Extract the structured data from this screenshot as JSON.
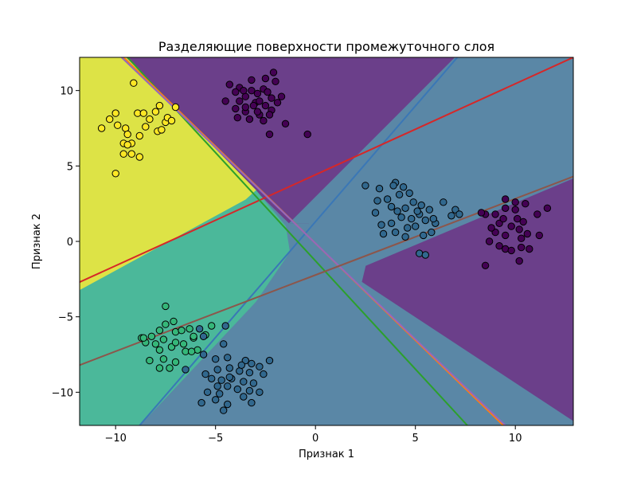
{
  "chart_data": {
    "type": "scatter",
    "title": "Разделяющие поверхности промежуточного слоя",
    "xlabel": "Признак 1",
    "ylabel": "Признак 2",
    "xlim": [
      -11.8,
      12.9
    ],
    "ylim": [
      -12.2,
      12.2
    ],
    "xticks": [
      -10,
      -5,
      0,
      5,
      10
    ],
    "yticks": [
      -10,
      -5,
      0,
      5,
      10
    ],
    "tick_labels_x": [
      "−10",
      "−5",
      "0",
      "5",
      "10"
    ],
    "tick_labels_y": [
      "−10",
      "−5",
      "0",
      "5",
      "10"
    ],
    "grid": false,
    "regions": [
      {
        "name": "class-0",
        "color": "#6b3f8a",
        "polygon": [
          [
            -9.5,
            12.2
          ],
          [
            -3.0,
            3.4
          ],
          [
            -1.3,
            1.2
          ],
          [
            -0.3,
            1.2
          ],
          [
            7.0,
            12.2
          ]
        ]
      },
      {
        "name": "class-0",
        "color": "#6b3f8a",
        "polygon": [
          [
            12.9,
            4.2
          ],
          [
            2.5,
            -1.6
          ],
          [
            2.3,
            -2.7
          ],
          [
            13.2,
            -12.2
          ],
          [
            12.9,
            -12.2
          ]
        ]
      },
      {
        "name": "class-1",
        "color": "#5a87a6",
        "polygon": [
          [
            7.0,
            12.2
          ],
          [
            12.9,
            12.2
          ],
          [
            12.9,
            4.2
          ],
          [
            2.5,
            -1.6
          ],
          [
            2.3,
            -2.7
          ],
          [
            13.2,
            -12.2
          ],
          [
            -8.8,
            -12.2
          ],
          [
            -3.0,
            -4.0
          ],
          [
            -1.3,
            -0.7
          ],
          [
            -0.3,
            1.2
          ],
          [
            -1.3,
            1.2
          ]
        ]
      },
      {
        "name": "class-2",
        "color": "#4bb89a",
        "polygon": [
          [
            -11.8,
            -3.2
          ],
          [
            -3.5,
            2.8
          ],
          [
            -3.0,
            3.4
          ],
          [
            -1.5,
            1.0
          ],
          [
            -1.3,
            -0.7
          ],
          [
            -3.0,
            -4.0
          ],
          [
            -8.8,
            -12.2
          ],
          [
            -11.8,
            -12.2
          ]
        ]
      },
      {
        "name": "class-3",
        "color": "#dde346",
        "polygon": [
          [
            -11.8,
            12.2
          ],
          [
            -9.5,
            12.2
          ],
          [
            -3.0,
            3.4
          ],
          [
            -3.5,
            2.8
          ],
          [
            -11.8,
            -3.2
          ]
        ]
      }
    ],
    "lines": [
      {
        "name": "line-blue",
        "color": "#3a77b6",
        "points": [
          [
            -8.8,
            -12.2
          ],
          [
            7.1,
            12.2
          ]
        ]
      },
      {
        "name": "line-red",
        "color": "#d62728",
        "points": [
          [
            -11.8,
            -2.7
          ],
          [
            12.9,
            12.2
          ]
        ]
      },
      {
        "name": "line-green",
        "color": "#2ca02c",
        "points": [
          [
            -9.4,
            12.2
          ],
          [
            7.6,
            -12.2
          ]
        ]
      },
      {
        "name": "line-orange",
        "color": "#ff7f0e",
        "points": [
          [
            -9.6,
            12.2
          ],
          [
            9.4,
            -12.2
          ]
        ]
      },
      {
        "name": "line-purple",
        "color": "#9467bd",
        "points": [
          [
            -9.7,
            12.2
          ],
          [
            9.5,
            -12.2
          ]
        ]
      },
      {
        "name": "line-brown",
        "color": "#8c564b",
        "points": [
          [
            -11.8,
            -8.2
          ],
          [
            12.9,
            4.3
          ]
        ]
      }
    ],
    "series": [
      {
        "cluster": "purple-top",
        "color": "#440154",
        "points": [
          [
            -4.3,
            10.4
          ],
          [
            -3.8,
            10.2
          ],
          [
            -3.5,
            9.6
          ],
          [
            -3.2,
            10.0
          ],
          [
            -2.9,
            9.8
          ],
          [
            -2.6,
            10.1
          ],
          [
            -2.2,
            9.5
          ],
          [
            -3.8,
            9.3
          ],
          [
            -3.0,
            9.2
          ],
          [
            -2.5,
            9.0
          ],
          [
            -4.0,
            8.8
          ],
          [
            -3.5,
            8.6
          ],
          [
            -2.8,
            8.4
          ],
          [
            -2.2,
            8.7
          ],
          [
            -3.3,
            8.1
          ],
          [
            -2.6,
            8.0
          ],
          [
            -1.5,
            7.8
          ],
          [
            -2.3,
            7.1
          ],
          [
            -0.4,
            7.1
          ],
          [
            -3.1,
            9.0
          ],
          [
            -2.1,
            11.2
          ],
          [
            -2.5,
            10.8
          ],
          [
            -3.2,
            10.7
          ],
          [
            -4.0,
            9.9
          ],
          [
            -1.9,
            9.2
          ],
          [
            -2.8,
            9.3
          ],
          [
            -3.5,
            8.9
          ],
          [
            -2.3,
            8.4
          ],
          [
            -1.7,
            9.6
          ],
          [
            -3.9,
            8.2
          ],
          [
            -2.9,
            8.6
          ],
          [
            -4.5,
            9.3
          ],
          [
            -2.0,
            10.6
          ],
          [
            -3.6,
            10.0
          ],
          [
            -2.4,
            9.9
          ]
        ]
      },
      {
        "cluster": "yellow",
        "color": "#fde725",
        "points": [
          [
            -9.1,
            10.5
          ],
          [
            -7.0,
            8.9
          ],
          [
            -10.3,
            8.1
          ],
          [
            -10.0,
            8.5
          ],
          [
            -9.9,
            7.7
          ],
          [
            -9.5,
            7.5
          ],
          [
            -9.4,
            7.1
          ],
          [
            -8.9,
            8.5
          ],
          [
            -8.6,
            8.5
          ],
          [
            -8.3,
            8.1
          ],
          [
            -8.0,
            8.6
          ],
          [
            -7.8,
            9.0
          ],
          [
            -7.5,
            7.9
          ],
          [
            -7.4,
            8.2
          ],
          [
            -8.5,
            7.6
          ],
          [
            -7.9,
            7.3
          ],
          [
            -7.7,
            7.4
          ],
          [
            -8.8,
            7.0
          ],
          [
            -9.6,
            6.5
          ],
          [
            -9.2,
            6.5
          ],
          [
            -9.4,
            6.4
          ],
          [
            -10.7,
            7.5
          ],
          [
            -9.6,
            5.8
          ],
          [
            -9.2,
            5.8
          ],
          [
            -8.8,
            5.6
          ],
          [
            -10.0,
            4.5
          ],
          [
            -7.2,
            8.0
          ]
        ]
      },
      {
        "cluster": "blue-right",
        "color": "#31688e",
        "points": [
          [
            2.5,
            3.7
          ],
          [
            3.2,
            3.5
          ],
          [
            4.0,
            3.9
          ],
          [
            4.4,
            3.6
          ],
          [
            4.7,
            3.2
          ],
          [
            4.2,
            3.1
          ],
          [
            3.6,
            2.8
          ],
          [
            3.1,
            2.7
          ],
          [
            3.8,
            2.3
          ],
          [
            4.1,
            2.0
          ],
          [
            4.5,
            2.2
          ],
          [
            4.9,
            2.6
          ],
          [
            5.3,
            2.4
          ],
          [
            5.7,
            2.1
          ],
          [
            6.4,
            2.6
          ],
          [
            4.3,
            1.6
          ],
          [
            4.8,
            1.5
          ],
          [
            5.0,
            1.0
          ],
          [
            4.6,
            0.9
          ],
          [
            3.8,
            1.2
          ],
          [
            3.3,
            1.1
          ],
          [
            5.2,
            1.8
          ],
          [
            5.5,
            1.4
          ],
          [
            6.0,
            1.2
          ],
          [
            6.8,
            1.7
          ],
          [
            7.0,
            2.1
          ],
          [
            7.2,
            1.8
          ],
          [
            5.8,
            0.6
          ],
          [
            5.4,
            0.4
          ],
          [
            4.5,
            0.3
          ],
          [
            3.4,
            0.5
          ],
          [
            5.2,
            -0.8
          ],
          [
            5.5,
            -0.9
          ],
          [
            4.0,
            0.6
          ],
          [
            5.9,
            1.5
          ],
          [
            3.0,
            1.9
          ],
          [
            3.9,
            3.7
          ],
          [
            5.1,
            2.0
          ]
        ]
      },
      {
        "cluster": "purple-right",
        "color": "#440154",
        "points": [
          [
            9.5,
            2.8
          ],
          [
            9.5,
            2.2
          ],
          [
            10.0,
            2.1
          ],
          [
            10.5,
            2.5
          ],
          [
            11.1,
            1.8
          ],
          [
            11.6,
            2.2
          ],
          [
            9.0,
            1.8
          ],
          [
            8.5,
            1.8
          ],
          [
            8.3,
            1.9
          ],
          [
            9.2,
            1.2
          ],
          [
            10.1,
            1.5
          ],
          [
            9.8,
            1.0
          ],
          [
            10.2,
            0.8
          ],
          [
            9.0,
            0.6
          ],
          [
            9.5,
            0.4
          ],
          [
            10.3,
            0.2
          ],
          [
            10.6,
            0.5
          ],
          [
            11.2,
            0.4
          ],
          [
            8.7,
            0.0
          ],
          [
            9.2,
            -0.3
          ],
          [
            9.5,
            -0.5
          ],
          [
            10.3,
            -0.4
          ],
          [
            9.8,
            -0.6
          ],
          [
            10.7,
            -0.5
          ],
          [
            10.2,
            -1.3
          ],
          [
            8.5,
            -1.6
          ],
          [
            10.0,
            2.6
          ],
          [
            9.4,
            1.5
          ],
          [
            10.4,
            1.3
          ],
          [
            8.8,
            0.9
          ]
        ]
      },
      {
        "cluster": "green-left",
        "color": "#35b779",
        "points": [
          [
            -7.5,
            -4.3
          ],
          [
            -7.5,
            -5.5
          ],
          [
            -7.1,
            -5.3
          ],
          [
            -7.8,
            -5.9
          ],
          [
            -8.7,
            -6.4
          ],
          [
            -8.2,
            -6.3
          ],
          [
            -7.0,
            -6.0
          ],
          [
            -6.7,
            -5.9
          ],
          [
            -7.6,
            -6.5
          ],
          [
            -8.0,
            -6.8
          ],
          [
            -8.5,
            -6.7
          ],
          [
            -7.8,
            -7.2
          ],
          [
            -6.3,
            -5.8
          ],
          [
            -6.1,
            -6.4
          ],
          [
            -6.6,
            -6.8
          ],
          [
            -7.2,
            -7.0
          ],
          [
            -7.6,
            -7.8
          ],
          [
            -8.3,
            -7.9
          ],
          [
            -7.0,
            -8.0
          ],
          [
            -6.5,
            -7.3
          ],
          [
            -5.9,
            -7.2
          ],
          [
            -7.3,
            -8.4
          ],
          [
            -7.8,
            -8.4
          ],
          [
            -5.2,
            -5.6
          ],
          [
            -6.1,
            -6.3
          ],
          [
            -5.5,
            -6.2
          ],
          [
            -7.0,
            -6.7
          ],
          [
            -8.6,
            -6.4
          ],
          [
            -6.2,
            -7.3
          ]
        ]
      },
      {
        "cluster": "blue-bottom",
        "color": "#31688e",
        "points": [
          [
            -4.5,
            -5.6
          ],
          [
            -5.8,
            -5.8
          ],
          [
            -5.6,
            -6.3
          ],
          [
            -4.6,
            -6.8
          ],
          [
            -5.6,
            -7.5
          ],
          [
            -5.0,
            -7.8
          ],
          [
            -4.4,
            -7.7
          ],
          [
            -3.5,
            -7.9
          ],
          [
            -3.2,
            -8.1
          ],
          [
            -2.8,
            -8.3
          ],
          [
            -2.3,
            -7.9
          ],
          [
            -4.9,
            -8.5
          ],
          [
            -4.3,
            -8.4
          ],
          [
            -3.8,
            -8.6
          ],
          [
            -3.3,
            -8.7
          ],
          [
            -2.6,
            -8.8
          ],
          [
            -5.5,
            -8.8
          ],
          [
            -5.2,
            -9.1
          ],
          [
            -4.7,
            -9.2
          ],
          [
            -4.2,
            -9.1
          ],
          [
            -3.6,
            -9.3
          ],
          [
            -3.1,
            -9.4
          ],
          [
            -4.9,
            -9.6
          ],
          [
            -4.4,
            -9.6
          ],
          [
            -3.9,
            -9.8
          ],
          [
            -3.3,
            -9.9
          ],
          [
            -2.8,
            -10.0
          ],
          [
            -5.4,
            -10.0
          ],
          [
            -4.8,
            -10.1
          ],
          [
            -5.0,
            -10.5
          ],
          [
            -3.6,
            -10.3
          ],
          [
            -5.7,
            -10.7
          ],
          [
            -4.4,
            -10.8
          ],
          [
            -3.2,
            -10.7
          ],
          [
            -4.6,
            -11.2
          ],
          [
            -6.5,
            -8.5
          ],
          [
            -4.3,
            -9.0
          ],
          [
            -3.7,
            -8.2
          ]
        ]
      }
    ]
  }
}
